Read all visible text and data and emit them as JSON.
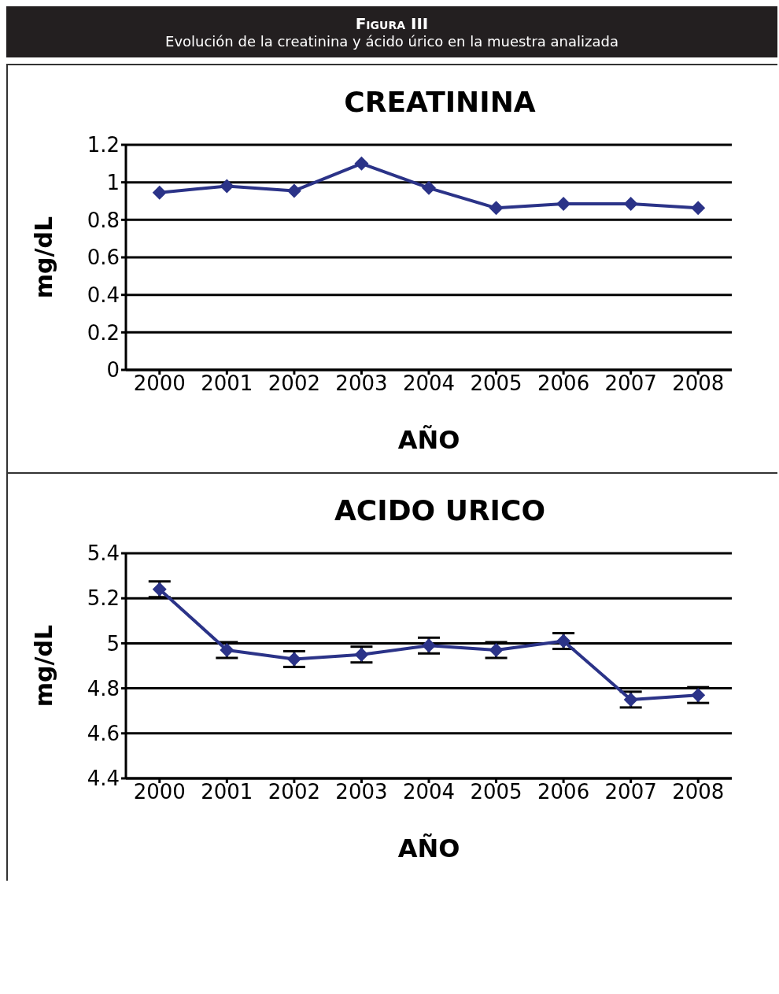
{
  "chart_data": [
    {
      "type": "line",
      "title": "CREATININA",
      "annotations": [
        "Figura III",
        "Evolución de la creatinina y ácido úrico en la muestra analizada"
      ],
      "xlabel": "AÑO",
      "ylabel": "mg/dL",
      "categories": [
        "2000",
        "2001",
        "2002",
        "2003",
        "2004",
        "2005",
        "2006",
        "2007",
        "2008"
      ],
      "series": [
        {
          "color": "#2b3388",
          "values": [
            0.945,
            0.98,
            0.955,
            1.1,
            0.97,
            0.863,
            0.885,
            0.885,
            0.863
          ]
        }
      ],
      "ylim": [
        0,
        1.2
      ],
      "yticks": [
        0,
        0.2,
        0.4,
        0.6,
        0.8,
        1,
        1.2
      ],
      "grid": "y",
      "legend": false,
      "marker": "diamond",
      "line_style": "solid"
    },
    {
      "type": "line",
      "title": "ACIDO URICO",
      "xlabel": "AÑO",
      "ylabel": "mg/dL",
      "categories": [
        "2000",
        "2001",
        "2002",
        "2003",
        "2004",
        "2005",
        "2006",
        "2007",
        "2008"
      ],
      "series": [
        {
          "color": "#2b3388",
          "values": [
            5.24,
            4.97,
            4.93,
            4.95,
            4.99,
            4.97,
            5.01,
            4.75,
            4.77
          ],
          "errors": [
            0.035,
            0.035,
            0.035,
            0.035,
            0.035,
            0.035,
            0.035,
            0.035,
            0.035
          ]
        }
      ],
      "ylim": [
        4.4,
        5.4
      ],
      "yticks": [
        4.4,
        4.6,
        4.8,
        5,
        5.2,
        5.4
      ],
      "grid": "y",
      "legend": false,
      "marker": "diamond",
      "line_style": "solid"
    }
  ]
}
